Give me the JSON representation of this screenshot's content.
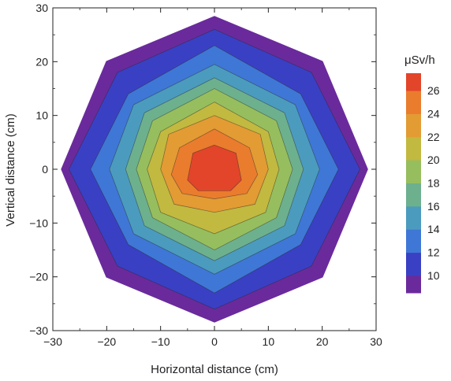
{
  "chart_data": {
    "type": "heatmap",
    "subtype": "filled-contour",
    "xlabel": "Horizontal distance (cm)",
    "ylabel": "Vertical distance (cm)",
    "xlim": [
      -30,
      30
    ],
    "ylim": [
      -30,
      30
    ],
    "x_ticks": [
      -30,
      -20,
      -10,
      0,
      10,
      20,
      30
    ],
    "y_ticks": [
      -30,
      -20,
      -10,
      0,
      10,
      20,
      30
    ],
    "x_tick_labels": [
      "−30",
      "−20",
      "−10",
      "0",
      "10",
      "20",
      "30"
    ],
    "y_tick_labels": [
      "−30",
      "−20",
      "−10",
      "0",
      "10",
      "20",
      "30"
    ],
    "grid": false,
    "colorbar": {
      "title": "μSv/h",
      "range": [
        8.5,
        27.5
      ],
      "ticks": [
        10,
        12,
        14,
        16,
        18,
        20,
        22,
        24,
        26
      ],
      "tick_labels": [
        "10",
        "12",
        "14",
        "16",
        "18",
        "20",
        "22",
        "24",
        "26"
      ],
      "placement": "right"
    },
    "levels": [
      {
        "min": 8.5,
        "max": 10,
        "color": "#6a2a9c",
        "polygon": [
          [
            0,
            28.5
          ],
          [
            20.1,
            20.1
          ],
          [
            28.5,
            0
          ],
          [
            20.1,
            -20.1
          ],
          [
            0,
            -28.5
          ],
          [
            -20.1,
            -20.1
          ],
          [
            -28.5,
            0
          ],
          [
            -20.1,
            20.1
          ]
        ]
      },
      {
        "min": 10,
        "max": 12,
        "color": "#3a40c4",
        "polygon": [
          [
            0,
            26
          ],
          [
            18,
            18
          ],
          [
            27,
            0
          ],
          [
            18,
            -18
          ],
          [
            0,
            -26
          ],
          [
            -18,
            -18
          ],
          [
            -27,
            0
          ],
          [
            -18,
            18
          ]
        ]
      },
      {
        "min": 12,
        "max": 14,
        "color": "#3f77d6",
        "polygon": [
          [
            0,
            23
          ],
          [
            16,
            14
          ],
          [
            23,
            0
          ],
          [
            16,
            -14
          ],
          [
            0,
            -23
          ],
          [
            -16,
            -14
          ],
          [
            -23,
            0
          ],
          [
            -16,
            14
          ]
        ]
      },
      {
        "min": 14,
        "max": 16,
        "color": "#4b9bbf",
        "polygon": [
          [
            0,
            19.5
          ],
          [
            15,
            12
          ],
          [
            19.5,
            0
          ],
          [
            15,
            -12
          ],
          [
            0,
            -19.5
          ],
          [
            -15,
            -12
          ],
          [
            -19.5,
            0
          ],
          [
            -15,
            12
          ]
        ]
      },
      {
        "min": 16,
        "max": 18,
        "color": "#6db08e",
        "polygon": [
          [
            0,
            17
          ],
          [
            13,
            10.5
          ],
          [
            16.5,
            0
          ],
          [
            13,
            -10.5
          ],
          [
            0,
            -17
          ],
          [
            -13,
            -10.5
          ],
          [
            -16.5,
            0
          ],
          [
            -13,
            10.5
          ]
        ]
      },
      {
        "min": 18,
        "max": 20,
        "color": "#96be5e",
        "polygon": [
          [
            0,
            15
          ],
          [
            11.5,
            9
          ],
          [
            14.5,
            0
          ],
          [
            11.5,
            -9
          ],
          [
            0,
            -15
          ],
          [
            -11.5,
            -9
          ],
          [
            -14.5,
            0
          ],
          [
            -11.5,
            9
          ]
        ]
      },
      {
        "min": 20,
        "max": 22,
        "color": "#c2b940",
        "polygon": [
          [
            0,
            12.5
          ],
          [
            10,
            7
          ],
          [
            12,
            0
          ],
          [
            9.5,
            -8
          ],
          [
            0,
            -12
          ],
          [
            -10,
            -8
          ],
          [
            -12.5,
            0
          ],
          [
            -10,
            7
          ]
        ]
      },
      {
        "min": 22,
        "max": 24,
        "color": "#e39b34",
        "polygon": [
          [
            0,
            10
          ],
          [
            8.5,
            6.5
          ],
          [
            10,
            0
          ],
          [
            7.5,
            -6.5
          ],
          [
            0,
            -8
          ],
          [
            -7.5,
            -6.5
          ],
          [
            -10,
            0
          ],
          [
            -8.5,
            6.5
          ]
        ]
      },
      {
        "min": 24,
        "max": 26,
        "color": "#ea7c2e",
        "polygon": [
          [
            0,
            7.5
          ],
          [
            6.5,
            4
          ],
          [
            8,
            -1
          ],
          [
            6,
            -4.5
          ],
          [
            0,
            -5.5
          ],
          [
            -6,
            -4.5
          ],
          [
            -8,
            -1
          ],
          [
            -6.5,
            4
          ]
        ]
      },
      {
        "min": 26,
        "max": 27.5,
        "color": "#e2452a",
        "polygon": [
          [
            0,
            4.5
          ],
          [
            4,
            3
          ],
          [
            5,
            -2
          ],
          [
            3,
            -4
          ],
          [
            -3,
            -4
          ],
          [
            -5,
            -2
          ],
          [
            -4,
            3
          ]
        ]
      }
    ]
  }
}
